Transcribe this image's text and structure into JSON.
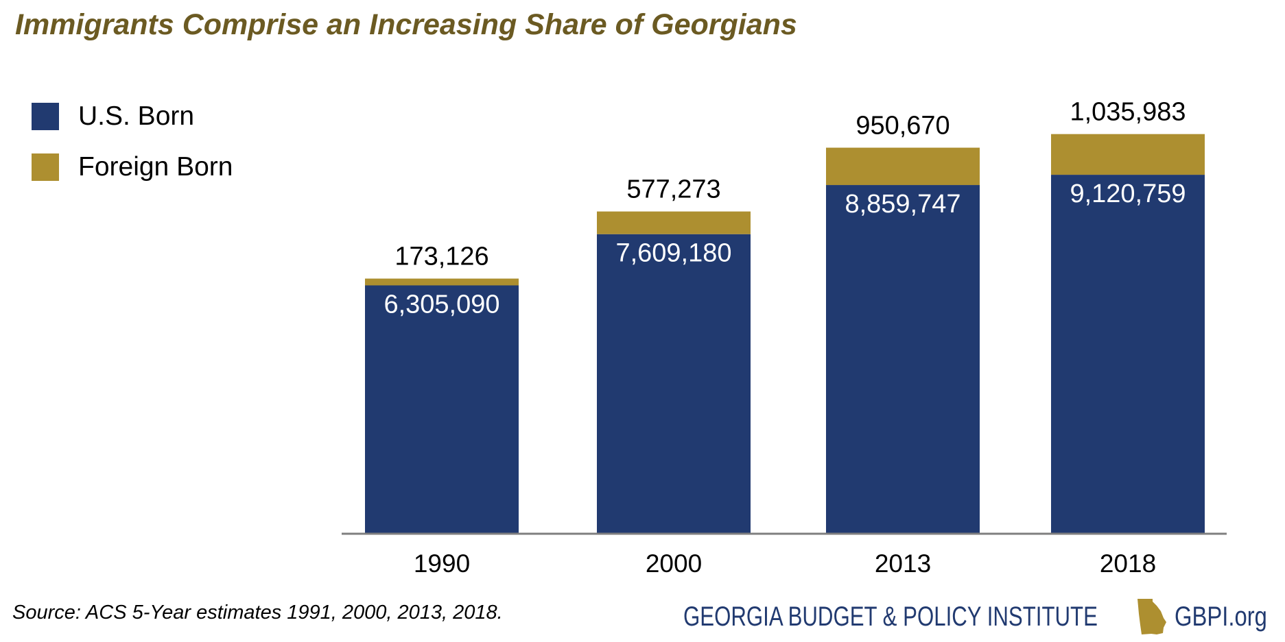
{
  "chart_data": {
    "type": "bar",
    "stacked": true,
    "title": "Immigrants Comprise an Increasing Share of Georgians",
    "categories": [
      "1990",
      "2000",
      "2013",
      "2018"
    ],
    "series": [
      {
        "name": "U.S. Born",
        "color": "#213a70",
        "values": [
          6305090,
          7609180,
          8859747,
          9120759
        ],
        "labels": [
          "6,305,090",
          "7,609,180",
          "8,859,747",
          "9,120,759"
        ]
      },
      {
        "name": "Foreign Born",
        "color": "#ad8f30",
        "values": [
          173126,
          577273,
          950670,
          1035983
        ],
        "labels": [
          "173,126",
          "577,273",
          "950,670",
          "1,035,983"
        ]
      }
    ],
    "ylim": [
      0,
      12000000
    ],
    "grid": false,
    "legend": "top-left",
    "xlabel": "",
    "ylabel": ""
  },
  "source": "Source: ACS 5-Year estimates 1991, 2000, 2013, 2018.",
  "logo": {
    "org": "GEORGIA BUDGET & POLICY INSTITUTE",
    "url": "GBPI.org"
  }
}
